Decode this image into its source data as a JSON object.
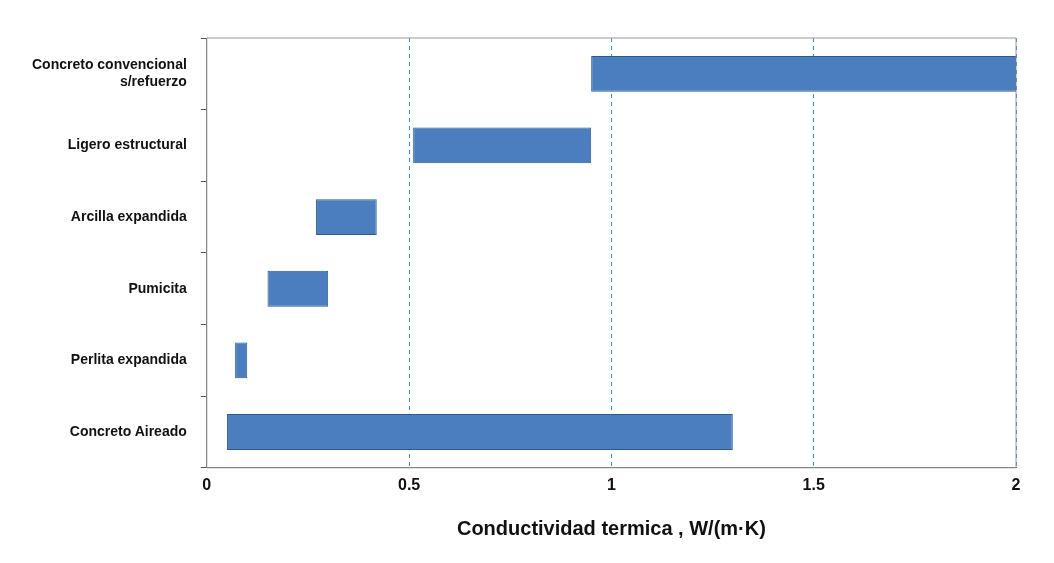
{
  "chart_data": {
    "type": "bar",
    "orientation": "horizontal",
    "xlabel": "Conductividad termica , W/(m·K)",
    "categories": [
      "Concreto convencional s/refuerzo",
      "Ligero estructural",
      "Arcilla expandida",
      "Pumicita",
      "Perlita expandida",
      "Concreto Aireado"
    ],
    "base": [
      0.95,
      0.51,
      0.27,
      0.15,
      0.07,
      0.05
    ],
    "values": [
      1.05,
      0.44,
      0.15,
      0.15,
      0.03,
      1.25
    ],
    "color": "#4a7ebf",
    "xlim": [
      0,
      2
    ],
    "xticks": [
      0,
      0.5,
      1,
      1.5,
      2
    ],
    "grid": "x",
    "legend": false
  }
}
